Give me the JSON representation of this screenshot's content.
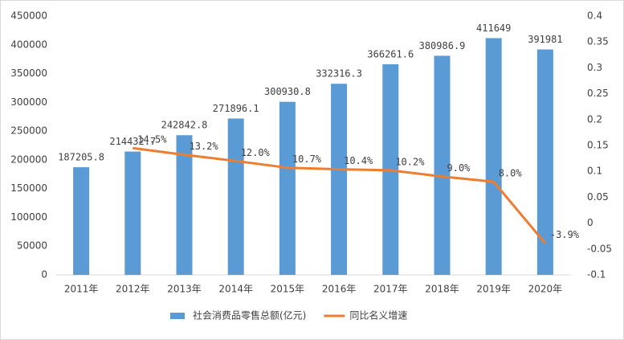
{
  "chart_data": {
    "type": "bar",
    "categories": [
      "2011年",
      "2012年",
      "2013年",
      "2014年",
      "2015年",
      "2016年",
      "2017年",
      "2018年",
      "2019年",
      "2020年"
    ],
    "series": [
      {
        "name": "社会消费品零售总额(亿元)",
        "type": "bar",
        "color": "#5b9bd5",
        "values": [
          187205.8,
          214432.7,
          242842.8,
          271896.1,
          300930.8,
          332316.3,
          366261.6,
          380986.9,
          411649,
          391981
        ]
      },
      {
        "name": "同比名义增速",
        "type": "line",
        "axis": "y2",
        "color": "#ed7d31",
        "values": [
          null,
          0.145,
          0.132,
          0.12,
          0.107,
          0.104,
          0.102,
          0.09,
          0.08,
          -0.039
        ],
        "value_labels": [
          null,
          "14.5%",
          "13.2%",
          "12.0%",
          "10.7%",
          "10.4%",
          "10.2%",
          "9.0%",
          "8.0%",
          "-3.9%"
        ]
      }
    ],
    "ylim": [
      0,
      450000
    ],
    "yticks": [
      0,
      50000,
      100000,
      150000,
      200000,
      250000,
      300000,
      350000,
      400000,
      450000
    ],
    "y2lim": [
      -0.1,
      0.4
    ],
    "y2ticks": [
      -0.1,
      -0.05,
      0,
      0.05,
      0.1,
      0.15,
      0.2,
      0.25,
      0.3,
      0.35,
      0.4
    ],
    "legend": "bottom"
  }
}
